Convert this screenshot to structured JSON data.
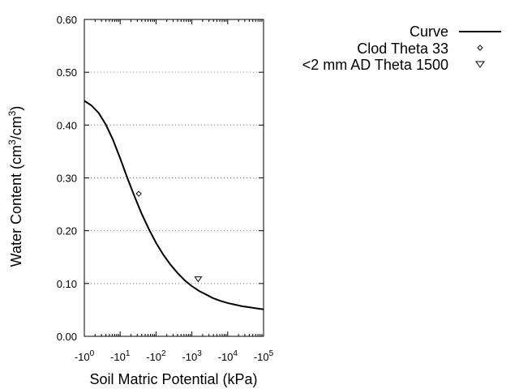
{
  "chart_data": {
    "type": "line",
    "title": "",
    "xlabel": "Soil Matric Potential (kPa)",
    "ylabel_main": "Water Content (cm",
    "ylabel_sup1": "3",
    "ylabel_mid": "/cm",
    "ylabel_sup2": "3",
    "ylabel_end": ")",
    "x_scale": "log",
    "x_sign": "negative",
    "xlim": [
      1,
      100000
    ],
    "ylim": [
      0.0,
      0.6
    ],
    "x_ticks": [
      {
        "base": "-10",
        "exp": "0",
        "value": 1
      },
      {
        "base": "-10",
        "exp": "1",
        "value": 10
      },
      {
        "base": "-10",
        "exp": "2",
        "value": 100
      },
      {
        "base": "-10",
        "exp": "3",
        "value": 1000
      },
      {
        "base": "-10",
        "exp": "4",
        "value": 10000
      },
      {
        "base": "-10",
        "exp": "5",
        "value": 100000
      }
    ],
    "y_ticks": [
      {
        "label": "0.00",
        "value": 0.0
      },
      {
        "label": "0.10",
        "value": 0.1
      },
      {
        "label": "0.20",
        "value": 0.2
      },
      {
        "label": "0.30",
        "value": 0.3
      },
      {
        "label": "0.40",
        "value": 0.4
      },
      {
        "label": "0.50",
        "value": 0.5
      },
      {
        "label": "0.60",
        "value": 0.6
      }
    ],
    "grid": "horizontal-dotted",
    "legend_position": "right",
    "series": [
      {
        "name": "Curve",
        "style": "line",
        "color": "#000000",
        "points": [
          {
            "x": 1,
            "y": 0.446
          },
          {
            "x": 1.58,
            "y": 0.437
          },
          {
            "x": 2.51,
            "y": 0.423
          },
          {
            "x": 3.98,
            "y": 0.401
          },
          {
            "x": 6.31,
            "y": 0.372
          },
          {
            "x": 10,
            "y": 0.337
          },
          {
            "x": 15.8,
            "y": 0.3
          },
          {
            "x": 25.1,
            "y": 0.265
          },
          {
            "x": 39.8,
            "y": 0.232
          },
          {
            "x": 63.1,
            "y": 0.203
          },
          {
            "x": 100,
            "y": 0.177
          },
          {
            "x": 158,
            "y": 0.155
          },
          {
            "x": 251,
            "y": 0.136
          },
          {
            "x": 398,
            "y": 0.12
          },
          {
            "x": 631,
            "y": 0.106
          },
          {
            "x": 1000,
            "y": 0.095
          },
          {
            "x": 1580,
            "y": 0.086
          },
          {
            "x": 2510,
            "y": 0.079
          },
          {
            "x": 3980,
            "y": 0.072
          },
          {
            "x": 6310,
            "y": 0.067
          },
          {
            "x": 10000,
            "y": 0.063
          },
          {
            "x": 15800,
            "y": 0.06
          },
          {
            "x": 25100,
            "y": 0.057
          },
          {
            "x": 39800,
            "y": 0.055
          },
          {
            "x": 63100,
            "y": 0.053
          },
          {
            "x": 100000,
            "y": 0.051
          }
        ]
      },
      {
        "name": "Clod Theta 33",
        "style": "marker",
        "marker": "diamond",
        "points": [
          {
            "x": 33,
            "y": 0.27
          }
        ]
      },
      {
        "name": "<2 mm AD Theta 1500",
        "style": "marker",
        "marker": "triangle-down",
        "points": [
          {
            "x": 1500,
            "y": 0.108
          }
        ]
      }
    ]
  }
}
